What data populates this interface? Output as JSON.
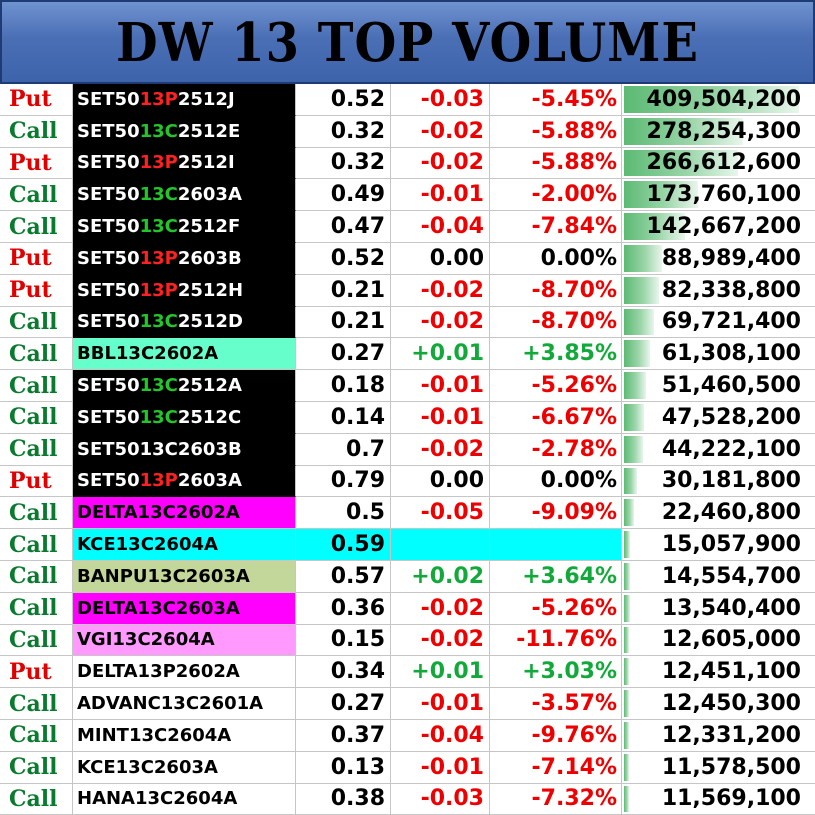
{
  "header": {
    "title": "DW 13 TOP VOLUME"
  },
  "rows": [
    {
      "type": "Put",
      "name": "SET5013P2512J",
      "prefix": "SET50",
      "mid": "13P",
      "suffix": "2512J",
      "mid_color": "red",
      "bg": "#000000",
      "price": "0.52",
      "change": "-0.03",
      "pct": "-5.45%",
      "volume": "409,504,200",
      "volume_value": 409504200
    },
    {
      "type": "Call",
      "name": "SET5013C2512E",
      "prefix": "SET50",
      "mid": "13C",
      "suffix": "2512E",
      "mid_color": "green",
      "bg": "#000000",
      "price": "0.32",
      "change": "-0.02",
      "pct": "-5.88%",
      "volume": "278,254,300",
      "volume_value": 278254300
    },
    {
      "type": "Put",
      "name": "SET5013P2512I",
      "prefix": "SET50",
      "mid": "13P",
      "suffix": "2512I",
      "mid_color": "red",
      "bg": "#000000",
      "price": "0.32",
      "change": "-0.02",
      "pct": "-5.88%",
      "volume": "266,612,600",
      "volume_value": 266612600
    },
    {
      "type": "Call",
      "name": "SET5013C2603A",
      "prefix": "SET50",
      "mid": "13C",
      "suffix": "2603A",
      "mid_color": "green",
      "bg": "#000000",
      "price": "0.49",
      "change": "-0.01",
      "pct": "-2.00%",
      "volume": "173,760,100",
      "volume_value": 173760100
    },
    {
      "type": "Call",
      "name": "SET5013C2512F",
      "prefix": "SET50",
      "mid": "13C",
      "suffix": "2512F",
      "mid_color": "green",
      "bg": "#000000",
      "price": "0.47",
      "change": "-0.04",
      "pct": "-7.84%",
      "volume": "142,667,200",
      "volume_value": 142667200
    },
    {
      "type": "Put",
      "name": "SET5013P2603B",
      "prefix": "SET50",
      "mid": "13P",
      "suffix": "2603B",
      "mid_color": "red",
      "bg": "#000000",
      "price": "0.52",
      "change": "0.00",
      "pct": "0.00%",
      "volume": "88,989,400",
      "volume_value": 88989400
    },
    {
      "type": "Put",
      "name": "SET5013P2512H",
      "prefix": "SET50",
      "mid": "13P",
      "suffix": "2512H",
      "mid_color": "red",
      "bg": "#000000",
      "price": "0.21",
      "change": "-0.02",
      "pct": "-8.70%",
      "volume": "82,338,800",
      "volume_value": 82338800
    },
    {
      "type": "Call",
      "name": "SET5013C2512D",
      "prefix": "SET50",
      "mid": "13C",
      "suffix": "2512D",
      "mid_color": "green",
      "bg": "#000000",
      "price": "0.21",
      "change": "-0.02",
      "pct": "-8.70%",
      "volume": "69,721,400",
      "volume_value": 69721400
    },
    {
      "type": "Call",
      "name": "BBL13C2602A",
      "bg": "#66ffcc",
      "price": "0.27",
      "change": "+0.01",
      "pct": "+3.85%",
      "volume": "61,308,100",
      "volume_value": 61308100
    },
    {
      "type": "Call",
      "name": "SET5013C2512A",
      "prefix": "SET50",
      "mid": "13C",
      "suffix": "2512A",
      "mid_color": "green",
      "bg": "#000000",
      "price": "0.18",
      "change": "-0.01",
      "pct": "-5.26%",
      "volume": "51,460,500",
      "volume_value": 51460500
    },
    {
      "type": "Call",
      "name": "SET5013C2512C",
      "prefix": "SET50",
      "mid": "13C",
      "suffix": "2512C",
      "mid_color": "green",
      "bg": "#000000",
      "price": "0.14",
      "change": "-0.01",
      "pct": "-6.67%",
      "volume": "47,528,200",
      "volume_value": 47528200
    },
    {
      "type": "Call",
      "name": "SET5013C2603B",
      "bg": "#000000",
      "price": "0.7",
      "change": "-0.02",
      "pct": "-2.78%",
      "volume": "44,222,100",
      "volume_value": 44222100
    },
    {
      "type": "Put",
      "name": "SET5013P2603A",
      "prefix": "SET50",
      "mid": "13P",
      "suffix": "2603A",
      "mid_color": "red",
      "bg": "#000000",
      "price": "0.79",
      "change": "0.00",
      "pct": "0.00%",
      "volume": "30,181,800",
      "volume_value": 30181800
    },
    {
      "type": "Call",
      "name": "DELTA13C2602A",
      "bg": "#ff00ff",
      "price": "0.5",
      "change": "-0.05",
      "pct": "-9.09%",
      "volume": "22,460,800",
      "volume_value": 22460800
    },
    {
      "type": "Call",
      "name": "KCE13C2604A",
      "bg": "#00ffff",
      "row_bg": "#00ffff",
      "price": "0.59",
      "change": "",
      "pct": "",
      "volume": "15,057,900",
      "volume_value": 15057900
    },
    {
      "type": "Call",
      "name": "BANPU13C2603A",
      "bg": "#c4d79b",
      "price": "0.57",
      "change": "+0.02",
      "pct": "+3.64%",
      "volume": "14,554,700",
      "volume_value": 14554700
    },
    {
      "type": "Call",
      "name": "DELTA13C2603A",
      "bg": "#ff00ff",
      "price": "0.36",
      "change": "-0.02",
      "pct": "-5.26%",
      "volume": "13,540,400",
      "volume_value": 13540400
    },
    {
      "type": "Call",
      "name": "VGI13C2604A",
      "bg": "#ff99ff",
      "price": "0.15",
      "change": "-0.02",
      "pct": "-11.76%",
      "volume": "12,605,000",
      "volume_value": 12605000
    },
    {
      "type": "Put",
      "name": "DELTA13P2602A",
      "bg": "#ffffff",
      "price": "0.34",
      "change": "+0.01",
      "pct": "+3.03%",
      "volume": "12,451,100",
      "volume_value": 12451100
    },
    {
      "type": "Call",
      "name": "ADVANC13C2601A",
      "bg": "#ffffff",
      "price": "0.27",
      "change": "-0.01",
      "pct": "-3.57%",
      "volume": "12,450,300",
      "volume_value": 12450300
    },
    {
      "type": "Call",
      "name": "MINT13C2604A",
      "bg": "#ffffff",
      "price": "0.37",
      "change": "-0.04",
      "pct": "-9.76%",
      "volume": "12,331,200",
      "volume_value": 12331200
    },
    {
      "type": "Call",
      "name": "KCE13C2603A",
      "bg": "#ffffff",
      "price": "0.13",
      "change": "-0.01",
      "pct": "-7.14%",
      "volume": "11,578,500",
      "volume_value": 11578500
    },
    {
      "type": "Call",
      "name": "HANA13C2604A",
      "bg": "#ffffff",
      "price": "0.38",
      "change": "-0.03",
      "pct": "-7.32%",
      "volume": "11,569,100",
      "volume_value": 11569100
    }
  ],
  "colors": {
    "call": "#0a7a2e",
    "put": "#e00000",
    "negative": "#ee0000",
    "positive": "#12a93a",
    "header_bg": "#4a6fb5",
    "volume_bar": "#5cba74"
  }
}
